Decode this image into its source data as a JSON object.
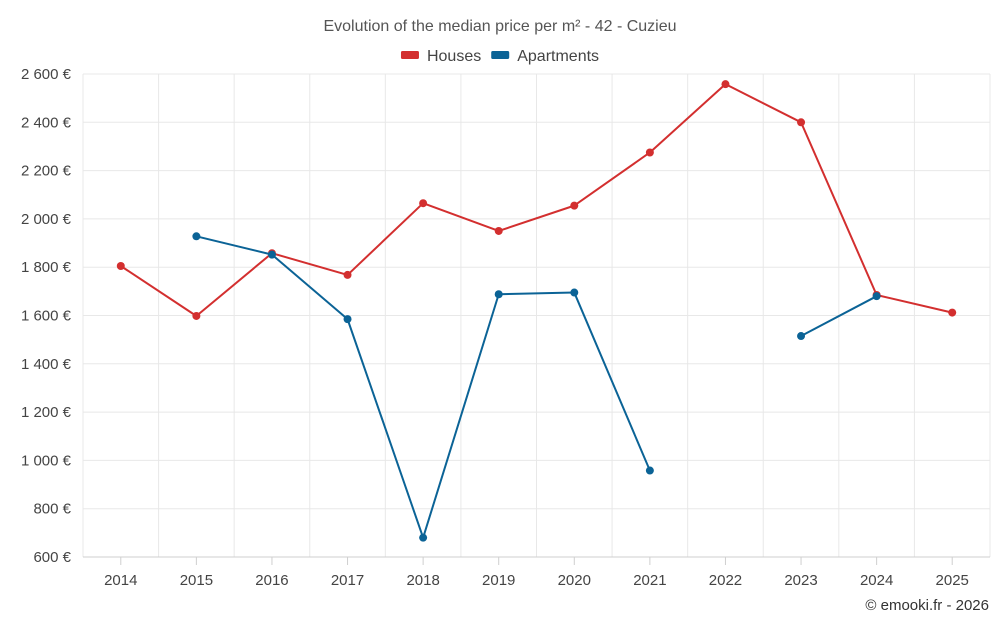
{
  "chart_data": {
    "type": "line",
    "title": "Evolution of the median price per m² - 42 - Cuzieu",
    "xlabel": "",
    "ylabel": "",
    "categories": [
      "2014",
      "2015",
      "2016",
      "2017",
      "2018",
      "2019",
      "2020",
      "2021",
      "2022",
      "2023",
      "2024",
      "2025"
    ],
    "ylim": [
      600,
      2600
    ],
    "yticks": [
      600,
      800,
      1000,
      1200,
      1400,
      1600,
      1800,
      2000,
      2200,
      2400,
      2600
    ],
    "ytick_labels": [
      "600 €",
      "800 €",
      "1 000 €",
      "1 200 €",
      "1 400 €",
      "1 600 €",
      "1 800 €",
      "2 000 €",
      "2 200 €",
      "2 400 €",
      "2 600 €"
    ],
    "legend_position": "top-center",
    "grid": true,
    "series": [
      {
        "name": "Houses",
        "color": "#d32f2f",
        "values": [
          1805,
          1598,
          1858,
          1768,
          2065,
          1950,
          2055,
          2275,
          2558,
          2400,
          1685,
          1612
        ]
      },
      {
        "name": "Apartments",
        "color": "#0b6396",
        "values": [
          null,
          1928,
          1852,
          1585,
          680,
          1688,
          1695,
          958,
          null,
          1515,
          1680,
          null
        ]
      }
    ]
  },
  "footer": {
    "credit": "© emooki.fr - 2026"
  }
}
